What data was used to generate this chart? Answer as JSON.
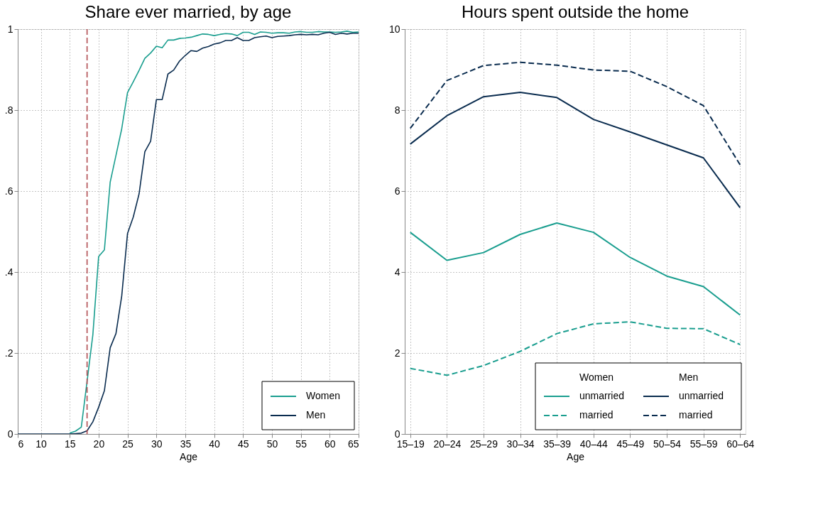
{
  "chart_data": [
    {
      "type": "line",
      "title": "Share ever married, by age",
      "xlabel": "Age",
      "x": [
        6,
        7,
        8,
        9,
        10,
        11,
        12,
        13,
        14,
        15,
        16,
        17,
        18,
        19,
        20,
        21,
        22,
        23,
        24,
        25,
        26,
        27,
        28,
        29,
        30,
        31,
        32,
        33,
        34,
        35,
        36,
        37,
        38,
        39,
        40,
        41,
        42,
        43,
        44,
        45,
        46,
        47,
        48,
        49,
        50,
        51,
        52,
        53,
        54,
        55,
        56,
        57,
        58,
        59,
        60,
        61,
        62,
        63,
        64,
        65
      ],
      "series": [
        {
          "name": "Women",
          "color": "#1a9e8f",
          "values": [
            null,
            null,
            null,
            null,
            null,
            null,
            null,
            null,
            null,
            0.002,
            0.007,
            0.017,
            0.13,
            0.245,
            0.438,
            0.455,
            0.622,
            0.688,
            0.754,
            0.843,
            0.87,
            0.898,
            0.928,
            0.941,
            0.958,
            0.954,
            0.973,
            0.973,
            0.977,
            0.978,
            0.98,
            0.984,
            0.988,
            0.987,
            0.984,
            0.987,
            0.989,
            0.988,
            0.984,
            0.992,
            0.992,
            0.987,
            0.993,
            0.992,
            0.99,
            0.991,
            0.991,
            0.99,
            0.993,
            0.994,
            0.992,
            0.992,
            0.994,
            0.993,
            0.993,
            0.992,
            0.993,
            0.995,
            0.992,
            0.993
          ]
        },
        {
          "name": "Men",
          "color": "#0a2c4f",
          "values": [
            0,
            0,
            0,
            0,
            0,
            0,
            0,
            0,
            0,
            0,
            0.001,
            0.002,
            0.008,
            0.03,
            0.066,
            0.107,
            0.213,
            0.248,
            0.341,
            0.495,
            0.536,
            0.593,
            0.697,
            0.723,
            0.826,
            0.826,
            0.889,
            0.899,
            0.921,
            0.935,
            0.947,
            0.945,
            0.953,
            0.957,
            0.963,
            0.966,
            0.972,
            0.972,
            0.979,
            0.972,
            0.972,
            0.979,
            0.981,
            0.983,
            0.979,
            0.982,
            0.983,
            0.984,
            0.986,
            0.987,
            0.986,
            0.987,
            0.986,
            0.99,
            0.992,
            0.987,
            0.99,
            0.988,
            0.99,
            0.99
          ]
        }
      ],
      "xlim": [
        6,
        65
      ],
      "xticks": [
        6,
        10,
        15,
        20,
        25,
        30,
        35,
        40,
        45,
        50,
        55,
        60,
        65
      ],
      "ylim": [
        0,
        1
      ],
      "yticks": [
        0,
        {
          "value": 0.2,
          "label": ".2"
        },
        {
          "value": 0.4,
          "label": ".4"
        },
        {
          "value": 0.6,
          "label": ".6"
        },
        {
          "value": 0.8,
          "label": ".8"
        },
        1
      ],
      "ref_lines": [
        {
          "axis": "x",
          "value": 18,
          "color": "#b04a50",
          "line_style": "dashed"
        }
      ],
      "grid": true,
      "legend": "bottom right"
    },
    {
      "type": "line",
      "title": "Hours spent outside the home",
      "xlabel": "Age",
      "categories": [
        "15–19",
        "20–24",
        "25–29",
        "30–34",
        "35–39",
        "40–44",
        "45–49",
        "50–54",
        "55–59",
        "60–64"
      ],
      "series": [
        {
          "name": "unmarried",
          "color": "#1a9e8f",
          "line_style": "solid",
          "values": [
            4.98,
            4.29,
            4.48,
            4.93,
            5.21,
            4.98,
            4.36,
            3.9,
            3.64,
            2.94
          ]
        },
        {
          "name": "married",
          "color": "#1a9e8f",
          "line_style": "dashed",
          "values": [
            1.62,
            1.45,
            1.69,
            2.04,
            2.48,
            2.72,
            2.77,
            2.61,
            2.6,
            2.21
          ]
        },
        {
          "name": "unmarried",
          "color": "#0a2c4f",
          "line_style": "solid",
          "values": [
            7.16,
            7.86,
            8.33,
            8.44,
            8.31,
            7.77,
            7.46,
            7.14,
            6.82,
            5.59
          ]
        },
        {
          "name": "married",
          "color": "#0a2c4f",
          "line_style": "dashed",
          "values": [
            7.55,
            8.73,
            9.1,
            9.18,
            9.11,
            8.99,
            8.96,
            8.58,
            8.11,
            6.65
          ]
        }
      ],
      "ylim": [
        0,
        10
      ],
      "yticks": [
        0,
        2,
        4,
        6,
        8,
        10
      ],
      "annotations": [
        "Women",
        "Men"
      ],
      "grid": true,
      "legend": "bottom right"
    }
  ]
}
